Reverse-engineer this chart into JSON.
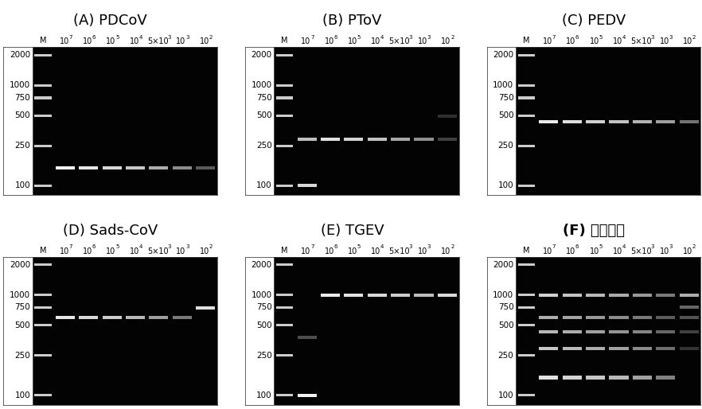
{
  "panels": [
    {
      "id": "A",
      "title": "(A) PDCoV",
      "title_bold_chinese": false,
      "row": 0,
      "col": 0,
      "ladder_bands_bp": [
        2000,
        1000,
        750,
        500,
        250,
        100
      ],
      "sample_bands": [
        {
          "lane": 1,
          "bp": 150,
          "intensity": 0.95
        },
        {
          "lane": 2,
          "bp": 150,
          "intensity": 0.9
        },
        {
          "lane": 3,
          "bp": 150,
          "intensity": 0.85
        },
        {
          "lane": 4,
          "bp": 150,
          "intensity": 0.78
        },
        {
          "lane": 5,
          "bp": 150,
          "intensity": 0.68
        },
        {
          "lane": 6,
          "bp": 150,
          "intensity": 0.55
        },
        {
          "lane": 7,
          "bp": 150,
          "intensity": 0.35
        }
      ]
    },
    {
      "id": "B",
      "title": "(B) PToV",
      "title_bold_chinese": false,
      "row": 0,
      "col": 1,
      "ladder_bands_bp": [
        2000,
        1000,
        750,
        500,
        250,
        100
      ],
      "sample_bands": [
        {
          "lane": 1,
          "bp": 100,
          "intensity": 0.85
        },
        {
          "lane": 1,
          "bp": 290,
          "intensity": 0.75
        },
        {
          "lane": 2,
          "bp": 290,
          "intensity": 0.88
        },
        {
          "lane": 3,
          "bp": 290,
          "intensity": 0.83
        },
        {
          "lane": 4,
          "bp": 290,
          "intensity": 0.76
        },
        {
          "lane": 5,
          "bp": 290,
          "intensity": 0.66
        },
        {
          "lane": 6,
          "bp": 290,
          "intensity": 0.56
        },
        {
          "lane": 7,
          "bp": 290,
          "intensity": 0.25
        },
        {
          "lane": 7,
          "bp": 490,
          "intensity": 0.18
        }
      ]
    },
    {
      "id": "C",
      "title": "(C) PEDV",
      "title_bold_chinese": false,
      "row": 0,
      "col": 2,
      "ladder_bands_bp": [
        2000,
        1000,
        750,
        500,
        250,
        100
      ],
      "sample_bands": [
        {
          "lane": 1,
          "bp": 430,
          "intensity": 0.92
        },
        {
          "lane": 2,
          "bp": 430,
          "intensity": 0.87
        },
        {
          "lane": 3,
          "bp": 430,
          "intensity": 0.82
        },
        {
          "lane": 4,
          "bp": 430,
          "intensity": 0.76
        },
        {
          "lane": 5,
          "bp": 430,
          "intensity": 0.7
        },
        {
          "lane": 6,
          "bp": 430,
          "intensity": 0.62
        },
        {
          "lane": 7,
          "bp": 430,
          "intensity": 0.45
        }
      ]
    },
    {
      "id": "D",
      "title": "(D) Sads-CoV",
      "title_bold_chinese": false,
      "row": 1,
      "col": 0,
      "ladder_bands_bp": [
        2000,
        1000,
        750,
        500,
        250,
        100
      ],
      "sample_bands": [
        {
          "lane": 1,
          "bp": 600,
          "intensity": 0.9
        },
        {
          "lane": 2,
          "bp": 600,
          "intensity": 0.85
        },
        {
          "lane": 3,
          "bp": 600,
          "intensity": 0.8
        },
        {
          "lane": 4,
          "bp": 600,
          "intensity": 0.72
        },
        {
          "lane": 5,
          "bp": 600,
          "intensity": 0.62
        },
        {
          "lane": 6,
          "bp": 600,
          "intensity": 0.48
        },
        {
          "lane": 7,
          "bp": 740,
          "intensity": 0.88
        }
      ]
    },
    {
      "id": "E",
      "title": "(E) TGEV",
      "title_bold_chinese": false,
      "row": 1,
      "col": 1,
      "ladder_bands_bp": [
        2000,
        1000,
        750,
        500,
        250,
        100
      ],
      "sample_bands": [
        {
          "lane": 1,
          "bp": 100,
          "intensity": 0.95
        },
        {
          "lane": 1,
          "bp": 380,
          "intensity": 0.3
        },
        {
          "lane": 2,
          "bp": 1000,
          "intensity": 0.92
        },
        {
          "lane": 3,
          "bp": 1000,
          "intensity": 0.89
        },
        {
          "lane": 4,
          "bp": 1000,
          "intensity": 0.85
        },
        {
          "lane": 5,
          "bp": 1000,
          "intensity": 0.8
        },
        {
          "lane": 6,
          "bp": 1000,
          "intensity": 0.74
        },
        {
          "lane": 7,
          "bp": 1000,
          "intensity": 0.86
        }
      ]
    },
    {
      "id": "F",
      "title": "(F) 五重模板",
      "title_bold_chinese": true,
      "row": 1,
      "col": 2,
      "ladder_bands_bp": [
        2000,
        1000,
        750,
        500,
        250,
        100
      ],
      "sample_bands": [
        {
          "lane": 1,
          "bp": 150,
          "intensity": 0.88
        },
        {
          "lane": 1,
          "bp": 290,
          "intensity": 0.78
        },
        {
          "lane": 1,
          "bp": 430,
          "intensity": 0.72
        },
        {
          "lane": 1,
          "bp": 600,
          "intensity": 0.68
        },
        {
          "lane": 1,
          "bp": 1000,
          "intensity": 0.82
        },
        {
          "lane": 2,
          "bp": 150,
          "intensity": 0.83
        },
        {
          "lane": 2,
          "bp": 290,
          "intensity": 0.73
        },
        {
          "lane": 2,
          "bp": 430,
          "intensity": 0.68
        },
        {
          "lane": 2,
          "bp": 600,
          "intensity": 0.64
        },
        {
          "lane": 2,
          "bp": 1000,
          "intensity": 0.77
        },
        {
          "lane": 3,
          "bp": 150,
          "intensity": 0.78
        },
        {
          "lane": 3,
          "bp": 290,
          "intensity": 0.68
        },
        {
          "lane": 3,
          "bp": 430,
          "intensity": 0.63
        },
        {
          "lane": 3,
          "bp": 600,
          "intensity": 0.6
        },
        {
          "lane": 3,
          "bp": 1000,
          "intensity": 0.72
        },
        {
          "lane": 4,
          "bp": 150,
          "intensity": 0.72
        },
        {
          "lane": 4,
          "bp": 290,
          "intensity": 0.63
        },
        {
          "lane": 4,
          "bp": 430,
          "intensity": 0.58
        },
        {
          "lane": 4,
          "bp": 600,
          "intensity": 0.55
        },
        {
          "lane": 4,
          "bp": 1000,
          "intensity": 0.67
        },
        {
          "lane": 5,
          "bp": 150,
          "intensity": 0.63
        },
        {
          "lane": 5,
          "bp": 290,
          "intensity": 0.55
        },
        {
          "lane": 5,
          "bp": 430,
          "intensity": 0.52
        },
        {
          "lane": 5,
          "bp": 600,
          "intensity": 0.48
        },
        {
          "lane": 5,
          "bp": 1000,
          "intensity": 0.6
        },
        {
          "lane": 6,
          "bp": 150,
          "intensity": 0.5
        },
        {
          "lane": 6,
          "bp": 290,
          "intensity": 0.43
        },
        {
          "lane": 6,
          "bp": 430,
          "intensity": 0.4
        },
        {
          "lane": 6,
          "bp": 600,
          "intensity": 0.36
        },
        {
          "lane": 6,
          "bp": 1000,
          "intensity": 0.48
        },
        {
          "lane": 7,
          "bp": 1000,
          "intensity": 0.68
        },
        {
          "lane": 7,
          "bp": 750,
          "intensity": 0.4
        },
        {
          "lane": 7,
          "bp": 600,
          "intensity": 0.32
        },
        {
          "lane": 7,
          "bp": 430,
          "intensity": 0.25
        },
        {
          "lane": 7,
          "bp": 290,
          "intensity": 0.2
        }
      ]
    }
  ],
  "bp_min": 80,
  "bp_max": 2400,
  "num_sample_lanes": 7,
  "background": "#ffffff",
  "gel_bg": "#030303",
  "title_fontsize": 13,
  "lane_label_fontsize": 7,
  "bp_label_fontsize": 7.5,
  "lane_headers": [
    [
      "M",
      ""
    ],
    [
      "10",
      "7"
    ],
    [
      "10",
      "6"
    ],
    [
      "10",
      "5"
    ],
    [
      "10",
      "4"
    ],
    [
      "5×10",
      "3"
    ],
    [
      "10",
      "3"
    ],
    [
      "10",
      "2"
    ]
  ]
}
